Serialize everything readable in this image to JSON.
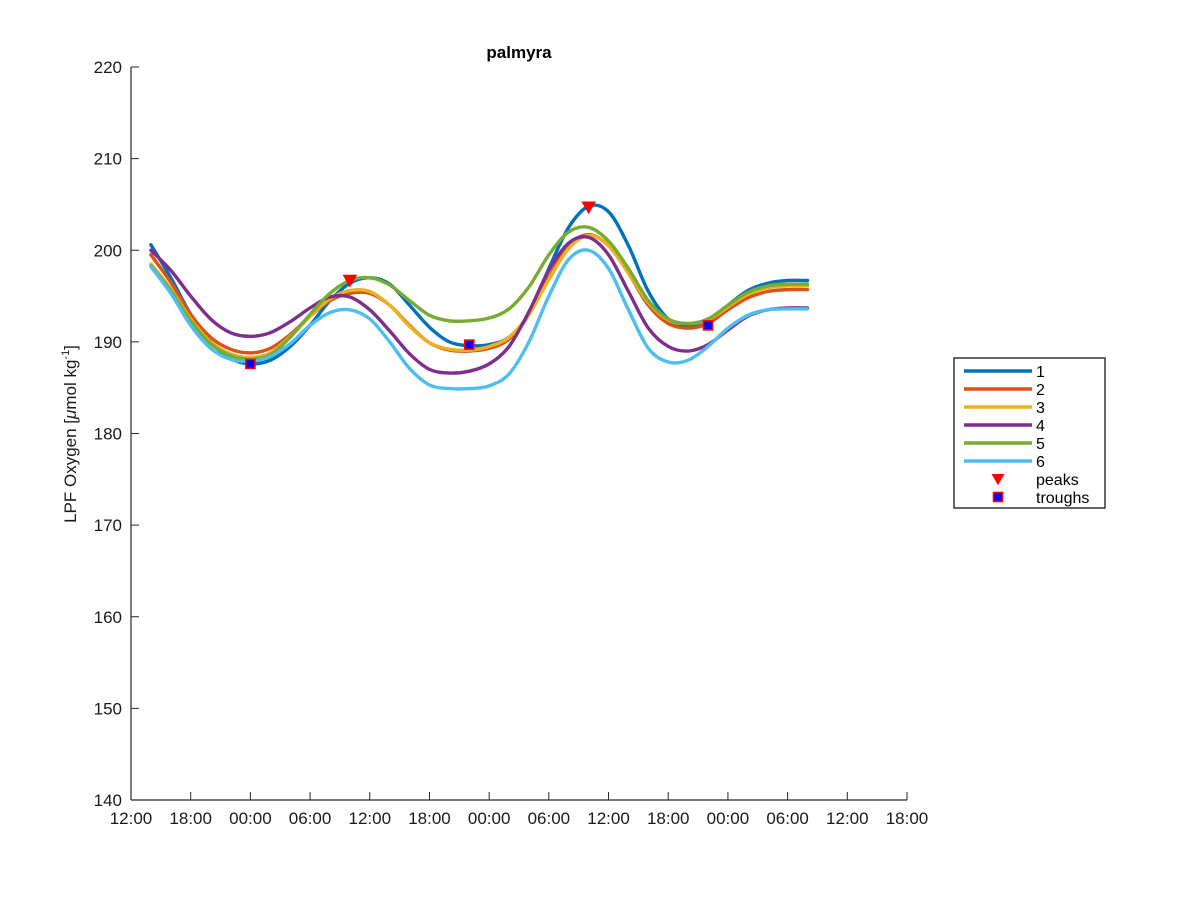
{
  "chart_data": {
    "type": "line",
    "title": "palmyra",
    "xlabel": "",
    "ylabel": "LPF Oxygen [",
    "ylabel_mu": "μ",
    "ylabel_rest": "mol kg",
    "ylabel_sup": "-1",
    "ylabel_end": "]",
    "ylim": [
      140,
      220
    ],
    "yticks": [
      140,
      150,
      160,
      170,
      180,
      190,
      200,
      210,
      220
    ],
    "xlim": [
      0,
      78
    ],
    "xtick_positions": [
      0,
      6,
      12,
      18,
      24,
      30,
      36,
      42,
      48,
      54,
      60,
      66,
      72,
      78
    ],
    "xtick_labels": [
      "12:00",
      "18:00",
      "00:00",
      "06:00",
      "12:00",
      "18:00",
      "00:00",
      "06:00",
      "12:00",
      "18:00",
      "00:00",
      "06:00",
      "12:00",
      "18:00"
    ],
    "x_unit": "hours since first tick (12:00)",
    "grid": false,
    "legend_position": "outside-right",
    "series": [
      {
        "name": "1",
        "color": "#0072BD",
        "points": [
          [
            2,
            200.6
          ],
          [
            4,
            197
          ],
          [
            6,
            193
          ],
          [
            8,
            190
          ],
          [
            10,
            188.2
          ],
          [
            12,
            187.6
          ],
          [
            14,
            188
          ],
          [
            16,
            189.5
          ],
          [
            18,
            191.8
          ],
          [
            20,
            194.5
          ],
          [
            22,
            196.4
          ],
          [
            24,
            197
          ],
          [
            26,
            196.3
          ],
          [
            28,
            194
          ],
          [
            30,
            191.6
          ],
          [
            32,
            190
          ],
          [
            34,
            189.6
          ],
          [
            36,
            189.7
          ],
          [
            38,
            190.5
          ],
          [
            40,
            193
          ],
          [
            42,
            198
          ],
          [
            44,
            202.5
          ],
          [
            46,
            204.8
          ],
          [
            48,
            204.2
          ],
          [
            50,
            200.5
          ],
          [
            52,
            195.5
          ],
          [
            54,
            192.5
          ],
          [
            56,
            191.7
          ],
          [
            58,
            192.2
          ],
          [
            60,
            194
          ],
          [
            62,
            195.6
          ],
          [
            64,
            196.4
          ],
          [
            66,
            196.7
          ],
          [
            68,
            196.7
          ]
        ]
      },
      {
        "name": "2",
        "color": "#D95319",
        "points": [
          [
            2,
            199.5
          ],
          [
            4,
            196.5
          ],
          [
            6,
            193
          ],
          [
            8,
            190.5
          ],
          [
            10,
            189.2
          ],
          [
            12,
            188.8
          ],
          [
            14,
            189.3
          ],
          [
            16,
            190.8
          ],
          [
            18,
            192.8
          ],
          [
            20,
            194.5
          ],
          [
            22,
            195.3
          ],
          [
            24,
            195.3
          ],
          [
            26,
            194
          ],
          [
            28,
            191.8
          ],
          [
            30,
            189.9
          ],
          [
            32,
            189.1
          ],
          [
            34,
            189
          ],
          [
            36,
            189.3
          ],
          [
            38,
            190.3
          ],
          [
            40,
            193
          ],
          [
            42,
            197
          ],
          [
            44,
            200.5
          ],
          [
            46,
            201.7
          ],
          [
            48,
            200.5
          ],
          [
            50,
            197.5
          ],
          [
            52,
            194
          ],
          [
            54,
            192
          ],
          [
            56,
            191.5
          ],
          [
            58,
            192
          ],
          [
            60,
            193.5
          ],
          [
            62,
            194.8
          ],
          [
            64,
            195.5
          ],
          [
            66,
            195.7
          ],
          [
            68,
            195.7
          ]
        ]
      },
      {
        "name": "3",
        "color": "#EDB120",
        "points": [
          [
            2,
            198.5
          ],
          [
            4,
            195.8
          ],
          [
            6,
            192.5
          ],
          [
            8,
            190
          ],
          [
            10,
            188.7
          ],
          [
            12,
            188.3
          ],
          [
            14,
            188.8
          ],
          [
            16,
            190.6
          ],
          [
            18,
            192.8
          ],
          [
            20,
            194.7
          ],
          [
            22,
            195.6
          ],
          [
            24,
            195.5
          ],
          [
            26,
            194
          ],
          [
            28,
            191.7
          ],
          [
            30,
            189.9
          ],
          [
            32,
            189.2
          ],
          [
            34,
            189.1
          ],
          [
            36,
            189.5
          ],
          [
            38,
            190.5
          ],
          [
            40,
            193
          ],
          [
            42,
            196.8
          ],
          [
            44,
            200.2
          ],
          [
            46,
            201.6
          ],
          [
            48,
            200.5
          ],
          [
            50,
            197.5
          ],
          [
            52,
            194.3
          ],
          [
            54,
            192.4
          ],
          [
            56,
            192
          ],
          [
            58,
            192.4
          ],
          [
            60,
            193.8
          ],
          [
            62,
            195.2
          ],
          [
            64,
            195.9
          ],
          [
            66,
            196.1
          ],
          [
            68,
            196.1
          ]
        ]
      },
      {
        "name": "4",
        "color": "#7E2F8E",
        "points": [
          [
            2,
            200
          ],
          [
            4,
            197.8
          ],
          [
            6,
            195
          ],
          [
            8,
            192.5
          ],
          [
            10,
            191
          ],
          [
            12,
            190.6
          ],
          [
            14,
            191
          ],
          [
            16,
            192.2
          ],
          [
            18,
            193.7
          ],
          [
            20,
            194.9
          ],
          [
            22,
            194.9
          ],
          [
            24,
            193.5
          ],
          [
            26,
            191.2
          ],
          [
            28,
            188.7
          ],
          [
            30,
            187
          ],
          [
            32,
            186.6
          ],
          [
            34,
            186.8
          ],
          [
            36,
            187.6
          ],
          [
            38,
            189.5
          ],
          [
            40,
            193.3
          ],
          [
            42,
            197.8
          ],
          [
            44,
            200.8
          ],
          [
            46,
            201.4
          ],
          [
            48,
            199.5
          ],
          [
            50,
            195.5
          ],
          [
            52,
            191.5
          ],
          [
            54,
            189.5
          ],
          [
            56,
            189
          ],
          [
            58,
            189.7
          ],
          [
            60,
            191.3
          ],
          [
            62,
            192.8
          ],
          [
            64,
            193.5
          ],
          [
            66,
            193.7
          ],
          [
            68,
            193.7
          ]
        ]
      },
      {
        "name": "5",
        "color": "#77AC30",
        "points": [
          [
            2,
            198.3
          ],
          [
            4,
            195.6
          ],
          [
            6,
            192.3
          ],
          [
            8,
            189.8
          ],
          [
            10,
            188.5
          ],
          [
            12,
            188.1
          ],
          [
            14,
            188.6
          ],
          [
            16,
            190.5
          ],
          [
            18,
            193
          ],
          [
            20,
            195.3
          ],
          [
            22,
            196.7
          ],
          [
            24,
            197
          ],
          [
            26,
            196.2
          ],
          [
            28,
            194.5
          ],
          [
            30,
            192.9
          ],
          [
            32,
            192.3
          ],
          [
            34,
            192.3
          ],
          [
            36,
            192.6
          ],
          [
            38,
            193.6
          ],
          [
            40,
            196
          ],
          [
            42,
            199.5
          ],
          [
            44,
            202
          ],
          [
            46,
            202.5
          ],
          [
            48,
            201
          ],
          [
            50,
            198
          ],
          [
            52,
            194.5
          ],
          [
            54,
            192.5
          ],
          [
            56,
            192
          ],
          [
            58,
            192.5
          ],
          [
            60,
            194
          ],
          [
            62,
            195.4
          ],
          [
            64,
            196.1
          ],
          [
            66,
            196.3
          ],
          [
            68,
            196.3
          ]
        ]
      },
      {
        "name": "6",
        "color": "#4DBEEE",
        "points": [
          [
            2,
            198.2
          ],
          [
            4,
            195.3
          ],
          [
            6,
            191.8
          ],
          [
            8,
            189.3
          ],
          [
            10,
            188.1
          ],
          [
            12,
            187.9
          ],
          [
            14,
            188.4
          ],
          [
            16,
            189.8
          ],
          [
            18,
            191.8
          ],
          [
            20,
            193.2
          ],
          [
            22,
            193.5
          ],
          [
            24,
            192.5
          ],
          [
            26,
            190
          ],
          [
            28,
            187.1
          ],
          [
            30,
            185.3
          ],
          [
            32,
            184.9
          ],
          [
            34,
            184.9
          ],
          [
            36,
            185.2
          ],
          [
            38,
            186.5
          ],
          [
            40,
            190
          ],
          [
            42,
            195
          ],
          [
            44,
            199
          ],
          [
            46,
            200
          ],
          [
            48,
            198
          ],
          [
            50,
            193.5
          ],
          [
            52,
            189.3
          ],
          [
            54,
            187.8
          ],
          [
            56,
            188
          ],
          [
            58,
            189.5
          ],
          [
            60,
            191.5
          ],
          [
            62,
            192.9
          ],
          [
            64,
            193.5
          ],
          [
            66,
            193.6
          ],
          [
            68,
            193.6
          ]
        ]
      }
    ],
    "peaks": {
      "name": "peaks",
      "color": "#FF0000",
      "marker": "triangle-down",
      "points": [
        [
          22,
          196.7
        ],
        [
          46,
          204.7
        ]
      ]
    },
    "troughs": {
      "name": "troughs",
      "color": "#FF0000",
      "fill": "#0000FF",
      "marker": "square",
      "points": [
        [
          12,
          187.6
        ],
        [
          34,
          189.7
        ],
        [
          58,
          191.8
        ]
      ]
    }
  }
}
